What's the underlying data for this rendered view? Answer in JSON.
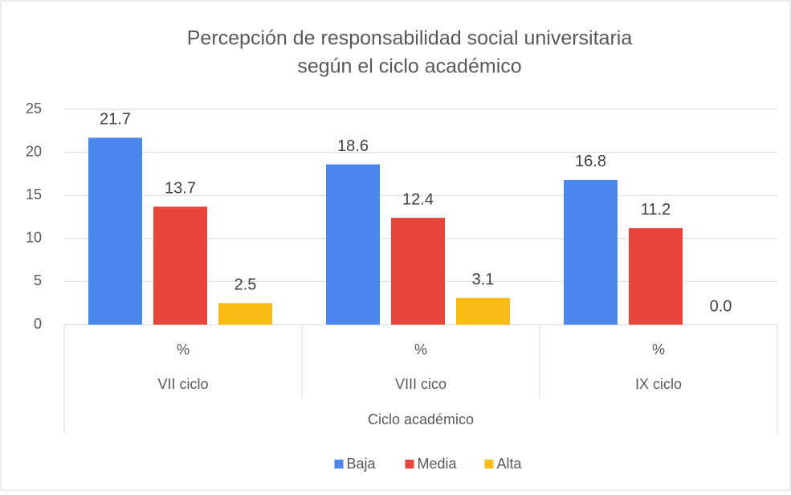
{
  "chart_data": {
    "type": "bar",
    "title": [
      "Percepción de responsabilidad social universitaria",
      "según el ciclo académico"
    ],
    "categories": [
      "VII ciclo",
      "VIII cico",
      "IX ciclo"
    ],
    "subcategories": [
      "%",
      "%",
      "%"
    ],
    "x_label": "Ciclo académico",
    "series": [
      {
        "name": "Baja",
        "color": "#4a86ec",
        "values": [
          21.7,
          18.6,
          16.8
        ]
      },
      {
        "name": "Media",
        "color": "#e8453c",
        "values": [
          13.7,
          12.4,
          11.2
        ]
      },
      {
        "name": "Alta",
        "color": "#f9bb14",
        "values": [
          2.5,
          3.1,
          0.0
        ],
        "value_labels": [
          "2.5",
          "3.1",
          "0.0"
        ]
      }
    ],
    "ylim": [
      0,
      25
    ],
    "yticks": [
      0,
      5,
      10,
      15,
      20,
      25
    ],
    "grid": true,
    "legend": "bottom"
  }
}
